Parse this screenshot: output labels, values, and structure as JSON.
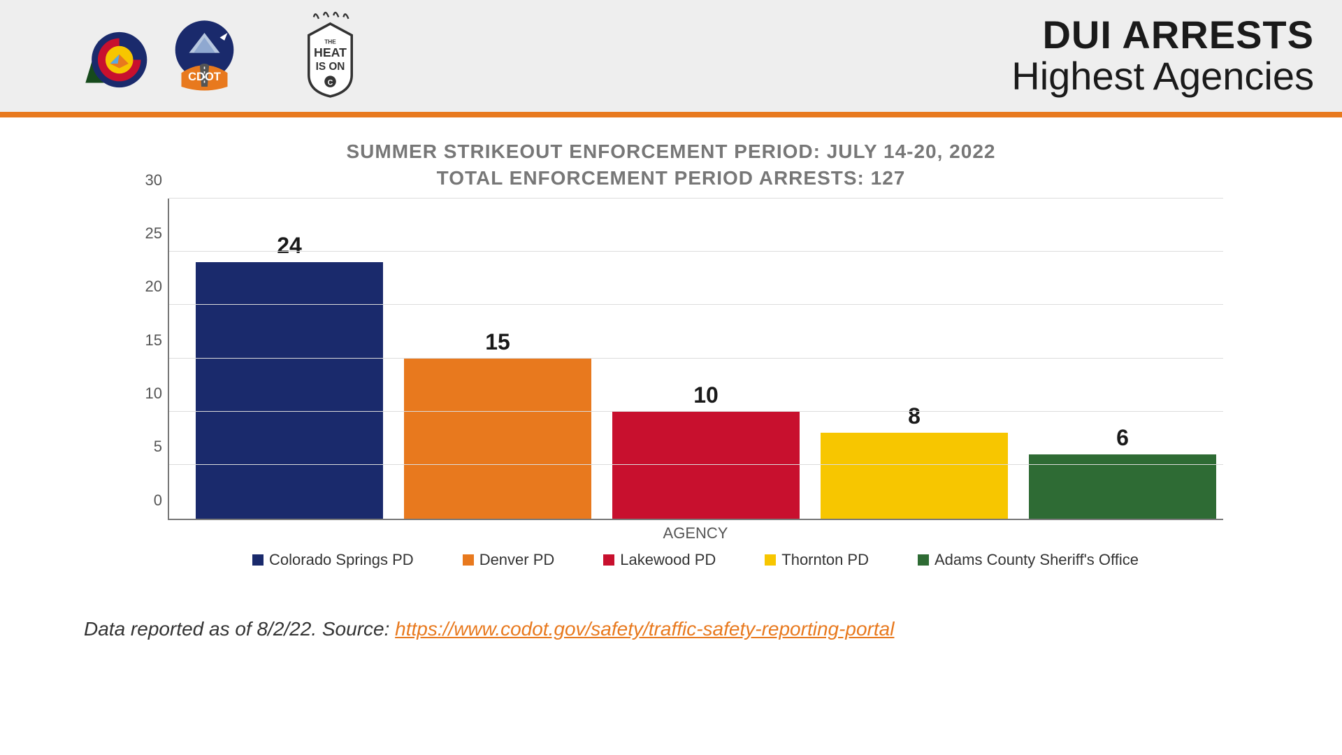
{
  "header": {
    "title_line1": "DUI ARRESTS",
    "title_line2": "Highest Agencies",
    "bg_color": "#eeeeee",
    "accent_color": "#e8791e"
  },
  "subtitle": {
    "line1": "SUMMER STRIKEOUT ENFORCEMENT PERIOD: JULY 14-20, 2022",
    "line2": "TOTAL ENFORCEMENT PERIOD ARRESTS: 127",
    "color": "#777777",
    "fontsize": 28
  },
  "chart": {
    "type": "bar",
    "ylim": [
      0,
      30
    ],
    "ytick_step": 5,
    "yticks": [
      0,
      5,
      10,
      15,
      20,
      25,
      30
    ],
    "xlabel": "AGENCY",
    "grid_color": "#dcdcdc",
    "axis_color": "#777777",
    "background_color": "#ffffff",
    "bar_width": 0.93,
    "label_fontsize": 32,
    "tick_fontsize": 22,
    "series": [
      {
        "name": "Colorado Springs PD",
        "value": 24,
        "color": "#1a2a6c"
      },
      {
        "name": "Denver PD",
        "value": 15,
        "color": "#e8791e"
      },
      {
        "name": "Lakewood PD",
        "value": 10,
        "color": "#c8102e"
      },
      {
        "name": "Thornton PD",
        "value": 8,
        "color": "#f7c600"
      },
      {
        "name": "Adams County Sheriff's Office",
        "value": 6,
        "color": "#2e6b34"
      }
    ]
  },
  "footer": {
    "prefix": "Data reported as of 8/2/22. Source: ",
    "link_text": "https://www.codot.gov/safety/traffic-safety-reporting-portal",
    "link_color": "#e8791e"
  },
  "logos": {
    "colorado": {
      "name": "colorado-state-logo"
    },
    "cdot": {
      "name": "cdot-logo",
      "label": "CDOT"
    },
    "heat": {
      "name": "heat-is-on-logo",
      "label_top": "THE",
      "label_mid": "HEAT",
      "label_bot": "IS ON"
    }
  }
}
